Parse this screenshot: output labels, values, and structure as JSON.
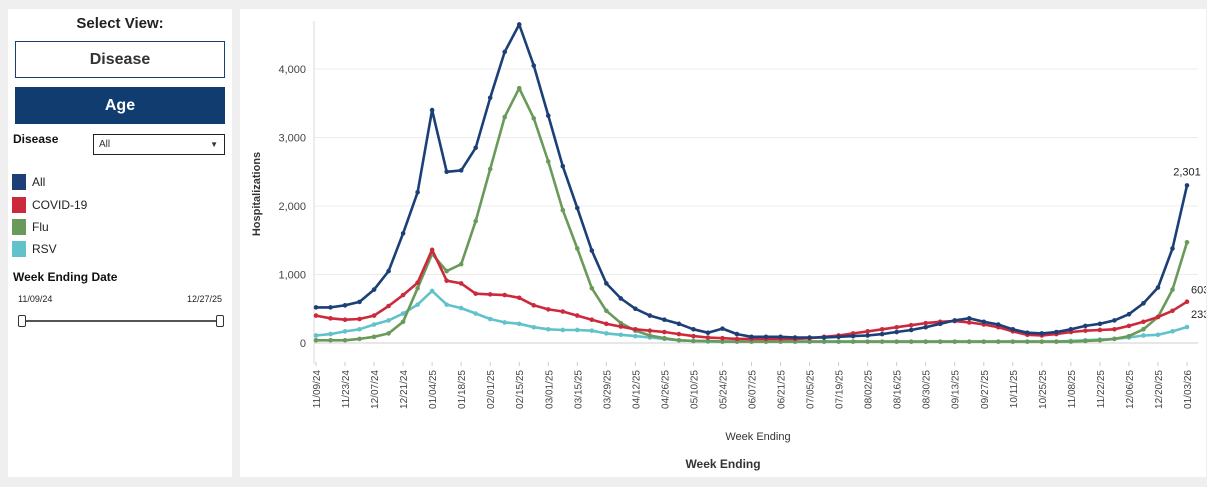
{
  "sidebar": {
    "title": "Select View:",
    "view_buttons": [
      "Disease",
      "Age"
    ],
    "filter_label": "Disease",
    "filter_value": "All",
    "legend": [
      {
        "label": "All",
        "color": "#1b3f76"
      },
      {
        "label": "COVID-19",
        "color": "#cc2a3c"
      },
      {
        "label": "Flu",
        "color": "#6a9a5a"
      },
      {
        "label": "RSV",
        "color": "#61c2cc"
      }
    ],
    "date_title": "Week Ending Date",
    "date_start": "11/09/24",
    "date_end": "12/27/25"
  },
  "chart_data": {
    "type": "line",
    "ylabel": "Hospitalizations",
    "xlabel": "Week Ending",
    "bottom_label": "Week Ending",
    "ylim": [
      0,
      4700
    ],
    "yticks": [
      0,
      1000,
      2000,
      3000,
      4000
    ],
    "ytick_labels": [
      "0",
      "1,000",
      "2,000",
      "3,000",
      "4,000"
    ],
    "x_tick_labels": [
      "11/09/24",
      "11/23/24",
      "12/07/24",
      "12/21/24",
      "01/04/25",
      "01/18/25",
      "02/01/25",
      "02/15/25",
      "03/01/25",
      "03/15/25",
      "03/29/25",
      "04/12/25",
      "04/26/25",
      "05/10/25",
      "05/24/25",
      "06/07/25",
      "06/21/25",
      "07/05/25",
      "07/19/25",
      "08/02/25",
      "08/16/25",
      "08/30/25",
      "09/13/25",
      "09/27/25",
      "10/11/25",
      "10/25/25",
      "11/08/25",
      "11/22/25",
      "12/06/25",
      "12/20/25",
      "01/03/26"
    ],
    "x_first": "11/09/24",
    "x_last": "12/27/25",
    "grid": true,
    "series": [
      {
        "name": "All",
        "color": "#1b3f76",
        "values": [
          520,
          520,
          550,
          600,
          780,
          1050,
          1600,
          2200,
          3400,
          2500,
          2520,
          2850,
          3580,
          4250,
          4650,
          4050,
          3320,
          2580,
          1970,
          1350,
          870,
          650,
          500,
          400,
          340,
          280,
          200,
          150,
          210,
          130,
          90,
          90,
          90,
          80,
          80,
          80,
          90,
          100,
          110,
          130,
          160,
          190,
          230,
          280,
          330,
          360,
          310,
          270,
          200,
          150,
          140,
          160,
          200,
          250,
          280,
          330,
          420,
          580,
          810,
          1380,
          2301
        ]
      },
      {
        "name": "COVID-19",
        "color": "#cc2a3c",
        "values": [
          400,
          360,
          340,
          350,
          400,
          540,
          700,
          880,
          1360,
          910,
          870,
          720,
          710,
          700,
          660,
          550,
          490,
          460,
          400,
          340,
          280,
          240,
          200,
          180,
          160,
          130,
          100,
          80,
          70,
          60,
          60,
          60,
          60,
          60,
          70,
          90,
          110,
          140,
          170,
          200,
          230,
          260,
          290,
          310,
          320,
          300,
          270,
          230,
          170,
          120,
          110,
          130,
          160,
          180,
          190,
          200,
          250,
          310,
          380,
          470,
          603
        ]
      },
      {
        "name": "Flu",
        "color": "#6a9a5a",
        "values": [
          40,
          40,
          40,
          60,
          90,
          140,
          310,
          800,
          1300,
          1050,
          1150,
          1780,
          2540,
          3300,
          3720,
          3280,
          2650,
          1940,
          1380,
          800,
          470,
          290,
          180,
          110,
          70,
          40,
          30,
          30,
          20,
          20,
          20,
          20,
          20,
          20,
          20,
          20,
          20,
          20,
          20,
          20,
          20,
          20,
          20,
          20,
          20,
          20,
          20,
          20,
          20,
          20,
          20,
          20,
          20,
          30,
          40,
          60,
          100,
          200,
          380,
          780,
          1470
        ]
      },
      {
        "name": "RSV",
        "color": "#61c2cc",
        "values": [
          110,
          130,
          170,
          200,
          270,
          330,
          430,
          560,
          760,
          560,
          510,
          430,
          350,
          300,
          280,
          230,
          200,
          190,
          190,
          180,
          140,
          120,
          100,
          80,
          60,
          40,
          30,
          20,
          20,
          20,
          20,
          20,
          20,
          20,
          20,
          20,
          20,
          20,
          20,
          20,
          20,
          20,
          20,
          20,
          20,
          20,
          20,
          20,
          20,
          20,
          20,
          20,
          30,
          40,
          50,
          60,
          80,
          110,
          120,
          170,
          233
        ]
      }
    ],
    "end_labels": [
      "2,301",
      "603",
      "233"
    ]
  }
}
